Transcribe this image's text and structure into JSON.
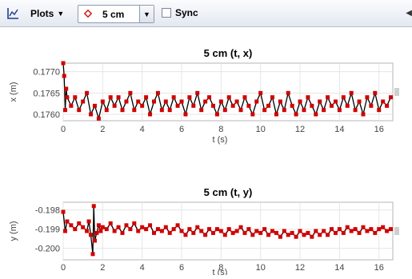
{
  "toolbar": {
    "plots_label": "Plots",
    "series_selected": "5 cm",
    "sync_label": "Sync",
    "sync_checked": false,
    "icons": [
      "axes-icon",
      "dropdown-caret-icon",
      "diamond-marker-icon",
      "combo-arrow-icon",
      "collapse-arrow-icon"
    ]
  },
  "colors": {
    "marker": "#d20000",
    "line": "#000000",
    "accent": "#d21c1c"
  },
  "chart_data": [
    {
      "type": "scatter",
      "title": "5 cm (t, x)",
      "xlabel": "t (s)",
      "ylabel": "x (m)",
      "xlim": [
        0,
        16.7
      ],
      "ylim": [
        0.17585,
        0.1772
      ],
      "xticks": [
        0,
        2,
        4,
        6,
        8,
        10,
        12,
        14,
        16
      ],
      "yticks": [
        0.176,
        0.1765,
        0.177
      ],
      "ytick_labels": [
        "0.1760",
        "0.1765",
        "0.1770"
      ],
      "grid": true,
      "series": [
        {
          "x": [
            0,
            0.05,
            0.1,
            0.15,
            0.2,
            0.4,
            0.6,
            0.8,
            1.0,
            1.2,
            1.4,
            1.6,
            1.8,
            2.0,
            2.2,
            2.4,
            2.6,
            2.8,
            3.0,
            3.2,
            3.4,
            3.6,
            3.8,
            4.0,
            4.2,
            4.4,
            4.6,
            4.8,
            5.0,
            5.2,
            5.4,
            5.6,
            5.8,
            6.0,
            6.2,
            6.4,
            6.6,
            6.8,
            7.0,
            7.2,
            7.4,
            7.6,
            7.8,
            8.0,
            8.2,
            8.4,
            8.6,
            8.8,
            9.0,
            9.2,
            9.4,
            9.6,
            9.8,
            10.0,
            10.2,
            10.4,
            10.6,
            10.8,
            11.0,
            11.2,
            11.4,
            11.6,
            11.8,
            12.0,
            12.2,
            12.4,
            12.6,
            12.8,
            13.0,
            13.2,
            13.4,
            13.6,
            13.8,
            14.0,
            14.2,
            14.4,
            14.6,
            14.8,
            15.0,
            15.2,
            15.4,
            15.6,
            15.8,
            16.0,
            16.2,
            16.4,
            16.6
          ],
          "y": [
            0.1772,
            0.1769,
            0.1761,
            0.1766,
            0.1764,
            0.1762,
            0.1764,
            0.1761,
            0.1763,
            0.1765,
            0.176,
            0.1762,
            0.1759,
            0.1763,
            0.1761,
            0.1764,
            0.1762,
            0.1764,
            0.1761,
            0.1763,
            0.1765,
            0.1761,
            0.1763,
            0.1762,
            0.1764,
            0.176,
            0.1763,
            0.1765,
            0.1761,
            0.1763,
            0.1761,
            0.1764,
            0.1762,
            0.1763,
            0.176,
            0.1764,
            0.1762,
            0.1765,
            0.1761,
            0.1763,
            0.1764,
            0.1762,
            0.176,
            0.1763,
            0.1761,
            0.1764,
            0.1762,
            0.1763,
            0.1761,
            0.1764,
            0.1762,
            0.176,
            0.1763,
            0.1765,
            0.1761,
            0.1762,
            0.1764,
            0.176,
            0.1763,
            0.1761,
            0.1765,
            0.1762,
            0.176,
            0.1763,
            0.1761,
            0.1764,
            0.1762,
            0.176,
            0.1763,
            0.1761,
            0.1764,
            0.1762,
            0.1763,
            0.1761,
            0.1764,
            0.1762,
            0.1765,
            0.1761,
            0.1763,
            0.176,
            0.1764,
            0.1762,
            0.1765,
            0.1761,
            0.1763,
            0.1762,
            0.1764
          ]
        }
      ]
    },
    {
      "type": "scatter",
      "title": "5 cm (t, y)",
      "xlabel": "t (s)",
      "ylabel": "y (m)",
      "xlim": [
        0,
        16.7
      ],
      "ylim": [
        -0.2006,
        -0.1976
      ],
      "xticks": [
        0,
        2,
        4,
        6,
        8,
        10,
        12,
        14,
        16
      ],
      "yticks": [
        -0.198,
        -0.199,
        -0.2
      ],
      "ytick_labels": [
        "-0.198",
        "-0.199",
        "-0.200"
      ],
      "grid": true,
      "series": [
        {
          "x": [
            0,
            0.1,
            0.2,
            0.4,
            0.6,
            0.8,
            1.0,
            1.2,
            1.3,
            1.4,
            1.5,
            1.55,
            1.6,
            1.7,
            1.8,
            1.9,
            2.0,
            2.2,
            2.4,
            2.6,
            2.8,
            3.0,
            3.2,
            3.4,
            3.6,
            3.8,
            4.0,
            4.2,
            4.4,
            4.6,
            4.8,
            5.0,
            5.2,
            5.4,
            5.6,
            5.8,
            6.0,
            6.2,
            6.4,
            6.6,
            6.8,
            7.0,
            7.2,
            7.4,
            7.6,
            7.8,
            8.0,
            8.2,
            8.4,
            8.6,
            8.8,
            9.0,
            9.2,
            9.4,
            9.6,
            9.8,
            10.0,
            10.2,
            10.4,
            10.6,
            10.8,
            11.0,
            11.2,
            11.4,
            11.6,
            11.8,
            12.0,
            12.2,
            12.4,
            12.6,
            12.8,
            13.0,
            13.2,
            13.4,
            13.6,
            13.8,
            14.0,
            14.2,
            14.4,
            14.6,
            14.8,
            15.0,
            15.2,
            15.4,
            15.6,
            15.8,
            16.0,
            16.2,
            16.4,
            16.6
          ],
          "y": [
            -0.1981,
            -0.1991,
            -0.1986,
            -0.1988,
            -0.199,
            -0.1987,
            -0.1989,
            -0.1991,
            -0.1986,
            -0.1993,
            -0.2003,
            -0.1978,
            -0.1996,
            -0.1992,
            -0.1988,
            -0.1991,
            -0.1989,
            -0.199,
            -0.1987,
            -0.1991,
            -0.1989,
            -0.1992,
            -0.1988,
            -0.199,
            -0.1987,
            -0.1991,
            -0.1989,
            -0.199,
            -0.1988,
            -0.1992,
            -0.199,
            -0.1991,
            -0.1989,
            -0.1992,
            -0.199,
            -0.1988,
            -0.1991,
            -0.1993,
            -0.199,
            -0.1992,
            -0.1989,
            -0.1991,
            -0.1993,
            -0.199,
            -0.1992,
            -0.199,
            -0.1991,
            -0.1993,
            -0.199,
            -0.1992,
            -0.1991,
            -0.1989,
            -0.1992,
            -0.199,
            -0.1993,
            -0.1991,
            -0.1992,
            -0.199,
            -0.1993,
            -0.1991,
            -0.1992,
            -0.1994,
            -0.1991,
            -0.1993,
            -0.1992,
            -0.1994,
            -0.1991,
            -0.1993,
            -0.1992,
            -0.1994,
            -0.1991,
            -0.1993,
            -0.1991,
            -0.1993,
            -0.199,
            -0.1992,
            -0.199,
            -0.1992,
            -0.1989,
            -0.1991,
            -0.199,
            -0.1992,
            -0.1989,
            -0.1991,
            -0.199,
            -0.1992,
            -0.199,
            -0.1989,
            -0.1991,
            -0.199
          ]
        }
      ]
    }
  ]
}
